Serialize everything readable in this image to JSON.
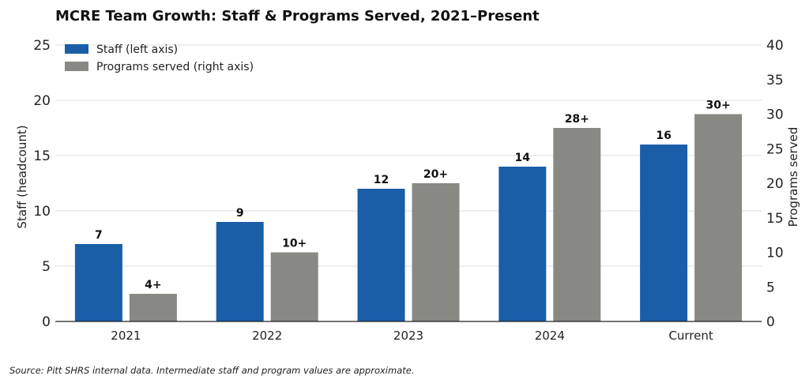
{
  "chart_data": {
    "type": "bar",
    "title": "MCRE Team Growth: Staff & Programs Served, 2021–Present",
    "categories": [
      "2021",
      "2022",
      "2023",
      "2024",
      "Current"
    ],
    "series": [
      {
        "name": "Staff (left axis)",
        "axis": "left",
        "values": [
          7,
          9,
          12,
          14,
          16
        ],
        "labels": [
          "7",
          "9",
          "12",
          "14",
          "16"
        ],
        "color": "#1a5ea8"
      },
      {
        "name": "Programs served (right axis)",
        "axis": "right",
        "values": [
          4,
          10,
          20,
          28,
          30
        ],
        "labels": [
          "4+",
          "10+",
          "20+",
          "28+",
          "30+"
        ],
        "color": "#898984"
      }
    ],
    "y_left": {
      "label": "Staff (headcount)",
      "lim": [
        0,
        25
      ],
      "ticks": [
        0,
        5,
        10,
        15,
        20,
        25
      ]
    },
    "y_right": {
      "label": "Programs served",
      "lim": [
        0,
        40
      ],
      "ticks": [
        0,
        5,
        10,
        15,
        20,
        25,
        30,
        35,
        40
      ]
    },
    "xlabel": "",
    "grid": {
      "y": true,
      "color": "#dddddd"
    },
    "legend": {
      "placement": "top-left"
    },
    "source": "Source: Pitt SHRS internal data. Intermediate staff and program values are approximate."
  }
}
